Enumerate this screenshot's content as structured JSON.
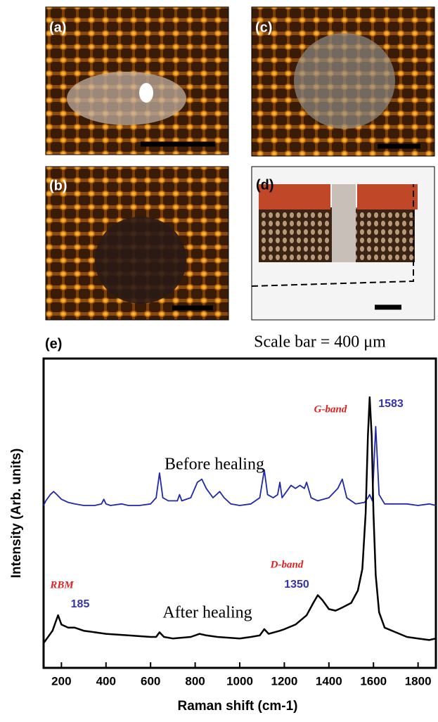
{
  "panels": [
    {
      "label": "(a)"
    },
    {
      "label": "(c)"
    },
    {
      "label": "(b)"
    },
    {
      "label": "(d)"
    }
  ],
  "scale_note": "Scale bar = 400 μm",
  "chart_data": {
    "type": "line",
    "label": "(e)",
    "x_label": "Raman shift (cm-1)",
    "y_label": "Intensity (Arb. units)",
    "xlim": [
      120,
      1880
    ],
    "xticks": [
      200,
      400,
      600,
      800,
      1000,
      1200,
      1400,
      1600,
      1800
    ],
    "ylim": [
      0,
      100
    ],
    "annotations": [
      {
        "text": "Before healing"
      },
      {
        "text": "After healing"
      },
      {
        "text": "RBM"
      },
      {
        "text": "185"
      },
      {
        "text": "D-band"
      },
      {
        "text": "1350"
      },
      {
        "text": "G-band"
      },
      {
        "text": "1583"
      }
    ],
    "series": [
      {
        "name": "Before healing",
        "color": "#1f28a8",
        "x": [
          120,
          130,
          150,
          165,
          180,
          200,
          230,
          260,
          300,
          350,
          380,
          390,
          400,
          420,
          470,
          500,
          550,
          600,
          625,
          640,
          655,
          680,
          720,
          730,
          740,
          780,
          810,
          830,
          850,
          880,
          910,
          920,
          930,
          960,
          1000,
          1050,
          1090,
          1110,
          1125,
          1150,
          1170,
          1180,
          1190,
          1210,
          1230,
          1250,
          1270,
          1290,
          1300,
          1320,
          1350,
          1400,
          1440,
          1460,
          1480,
          1520,
          1560,
          1575,
          1583,
          1595,
          1610,
          1625,
          1650,
          1700,
          1750,
          1800,
          1850,
          1880
        ],
        "values": [
          52.5,
          54,
          56,
          57,
          56,
          54.5,
          53.5,
          53,
          52.5,
          52.5,
          53,
          54.5,
          53,
          52.5,
          53,
          52.5,
          52.5,
          53,
          55,
          63,
          55,
          54,
          54,
          56,
          54,
          55,
          60,
          61,
          58,
          55,
          57,
          56,
          55,
          53,
          52.5,
          53,
          55,
          64,
          56,
          55,
          56,
          60,
          55,
          57,
          59,
          58,
          59,
          58,
          60,
          55,
          54,
          55,
          58,
          61,
          55,
          53,
          53.5,
          55,
          56,
          54,
          78,
          56,
          53,
          53,
          53,
          52.5,
          53,
          52.5
        ]
      },
      {
        "name": "After healing",
        "color": "#000000",
        "x": [
          120,
          130,
          160,
          175,
          185,
          200,
          230,
          260,
          300,
          350,
          400,
          500,
          600,
          625,
          640,
          660,
          700,
          780,
          820,
          850,
          900,
          1000,
          1050,
          1090,
          1110,
          1130,
          1180,
          1200,
          1250,
          1300,
          1330,
          1350,
          1370,
          1400,
          1430,
          1460,
          1500,
          1530,
          1550,
          1565,
          1575,
          1583,
          1592,
          1600,
          1610,
          1625,
          1650,
          1700,
          1750,
          1800,
          1850,
          1880
        ],
        "values": [
          8,
          9,
          12,
          15,
          17,
          14,
          13,
          13,
          12,
          11.5,
          11,
          10.5,
          10,
          10,
          11.5,
          10,
          9.5,
          10,
          11,
          10.5,
          10,
          9.5,
          10,
          10.5,
          12.5,
          11,
          12,
          12.5,
          14,
          17,
          21,
          23.5,
          22,
          19,
          18.5,
          19.5,
          21,
          25,
          32,
          50,
          75,
          87.5,
          75,
          50,
          30,
          18,
          13,
          11.5,
          10,
          9.5,
          9,
          9.5
        ]
      }
    ]
  }
}
